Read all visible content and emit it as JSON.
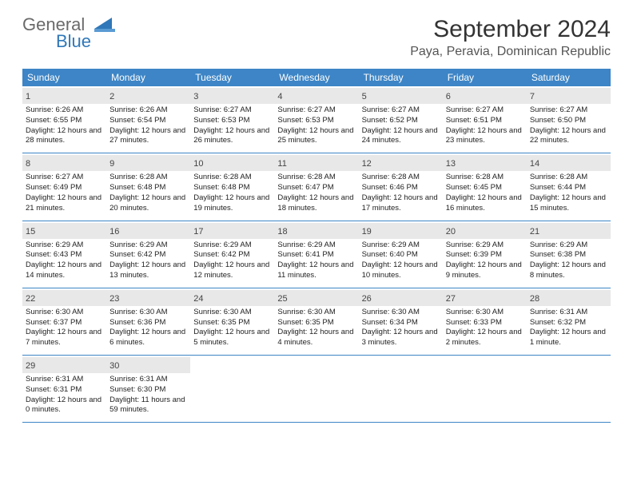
{
  "logo": {
    "text1": "General",
    "text2": "Blue"
  },
  "title": "September 2024",
  "location": "Paya, Peravia, Dominican Republic",
  "colors": {
    "header_bg": "#3d85c6",
    "header_text": "#ffffff",
    "daynum_bg": "#e8e8e8",
    "border": "#3d85c6",
    "logo_gray": "#6a6a6a",
    "logo_blue": "#2f77b8"
  },
  "day_labels": [
    "Sunday",
    "Monday",
    "Tuesday",
    "Wednesday",
    "Thursday",
    "Friday",
    "Saturday"
  ],
  "weeks": [
    [
      {
        "n": "1",
        "sr": "6:26 AM",
        "ss": "6:55 PM",
        "dl": "12 hours and 28 minutes."
      },
      {
        "n": "2",
        "sr": "6:26 AM",
        "ss": "6:54 PM",
        "dl": "12 hours and 27 minutes."
      },
      {
        "n": "3",
        "sr": "6:27 AM",
        "ss": "6:53 PM",
        "dl": "12 hours and 26 minutes."
      },
      {
        "n": "4",
        "sr": "6:27 AM",
        "ss": "6:53 PM",
        "dl": "12 hours and 25 minutes."
      },
      {
        "n": "5",
        "sr": "6:27 AM",
        "ss": "6:52 PM",
        "dl": "12 hours and 24 minutes."
      },
      {
        "n": "6",
        "sr": "6:27 AM",
        "ss": "6:51 PM",
        "dl": "12 hours and 23 minutes."
      },
      {
        "n": "7",
        "sr": "6:27 AM",
        "ss": "6:50 PM",
        "dl": "12 hours and 22 minutes."
      }
    ],
    [
      {
        "n": "8",
        "sr": "6:27 AM",
        "ss": "6:49 PM",
        "dl": "12 hours and 21 minutes."
      },
      {
        "n": "9",
        "sr": "6:28 AM",
        "ss": "6:48 PM",
        "dl": "12 hours and 20 minutes."
      },
      {
        "n": "10",
        "sr": "6:28 AM",
        "ss": "6:48 PM",
        "dl": "12 hours and 19 minutes."
      },
      {
        "n": "11",
        "sr": "6:28 AM",
        "ss": "6:47 PM",
        "dl": "12 hours and 18 minutes."
      },
      {
        "n": "12",
        "sr": "6:28 AM",
        "ss": "6:46 PM",
        "dl": "12 hours and 17 minutes."
      },
      {
        "n": "13",
        "sr": "6:28 AM",
        "ss": "6:45 PM",
        "dl": "12 hours and 16 minutes."
      },
      {
        "n": "14",
        "sr": "6:28 AM",
        "ss": "6:44 PM",
        "dl": "12 hours and 15 minutes."
      }
    ],
    [
      {
        "n": "15",
        "sr": "6:29 AM",
        "ss": "6:43 PM",
        "dl": "12 hours and 14 minutes."
      },
      {
        "n": "16",
        "sr": "6:29 AM",
        "ss": "6:42 PM",
        "dl": "12 hours and 13 minutes."
      },
      {
        "n": "17",
        "sr": "6:29 AM",
        "ss": "6:42 PM",
        "dl": "12 hours and 12 minutes."
      },
      {
        "n": "18",
        "sr": "6:29 AM",
        "ss": "6:41 PM",
        "dl": "12 hours and 11 minutes."
      },
      {
        "n": "19",
        "sr": "6:29 AM",
        "ss": "6:40 PM",
        "dl": "12 hours and 10 minutes."
      },
      {
        "n": "20",
        "sr": "6:29 AM",
        "ss": "6:39 PM",
        "dl": "12 hours and 9 minutes."
      },
      {
        "n": "21",
        "sr": "6:29 AM",
        "ss": "6:38 PM",
        "dl": "12 hours and 8 minutes."
      }
    ],
    [
      {
        "n": "22",
        "sr": "6:30 AM",
        "ss": "6:37 PM",
        "dl": "12 hours and 7 minutes."
      },
      {
        "n": "23",
        "sr": "6:30 AM",
        "ss": "6:36 PM",
        "dl": "12 hours and 6 minutes."
      },
      {
        "n": "24",
        "sr": "6:30 AM",
        "ss": "6:35 PM",
        "dl": "12 hours and 5 minutes."
      },
      {
        "n": "25",
        "sr": "6:30 AM",
        "ss": "6:35 PM",
        "dl": "12 hours and 4 minutes."
      },
      {
        "n": "26",
        "sr": "6:30 AM",
        "ss": "6:34 PM",
        "dl": "12 hours and 3 minutes."
      },
      {
        "n": "27",
        "sr": "6:30 AM",
        "ss": "6:33 PM",
        "dl": "12 hours and 2 minutes."
      },
      {
        "n": "28",
        "sr": "6:31 AM",
        "ss": "6:32 PM",
        "dl": "12 hours and 1 minute."
      }
    ],
    [
      {
        "n": "29",
        "sr": "6:31 AM",
        "ss": "6:31 PM",
        "dl": "12 hours and 0 minutes."
      },
      {
        "n": "30",
        "sr": "6:31 AM",
        "ss": "6:30 PM",
        "dl": "11 hours and 59 minutes."
      },
      null,
      null,
      null,
      null,
      null
    ]
  ],
  "labels": {
    "sunrise": "Sunrise:",
    "sunset": "Sunset:",
    "daylight": "Daylight:"
  }
}
